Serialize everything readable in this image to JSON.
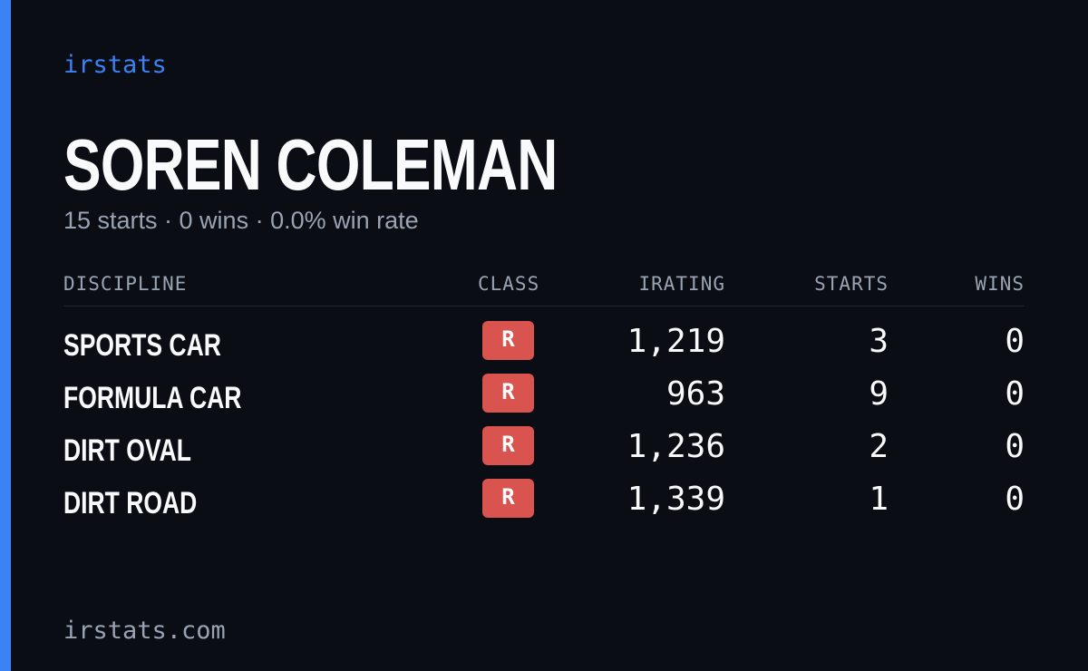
{
  "header": {
    "brand": "irstats",
    "name": "SOREN COLEMAN",
    "subtitle": "15 starts · 0 wins · 0.0% win rate"
  },
  "table": {
    "columns": [
      "DISCIPLINE",
      "CLASS",
      "IRATING",
      "STARTS",
      "WINS"
    ],
    "rows": [
      [
        "SPORTS CAR",
        "R",
        "1,219",
        "3",
        "0"
      ],
      [
        "FORMULA CAR",
        "R",
        "963",
        "9",
        "0"
      ],
      [
        "DIRT OVAL",
        "R",
        "1,236",
        "2",
        "0"
      ],
      [
        "DIRT ROAD",
        "R",
        "1,339",
        "1",
        "0"
      ]
    ]
  },
  "footer": {
    "url": "irstats.com"
  }
}
